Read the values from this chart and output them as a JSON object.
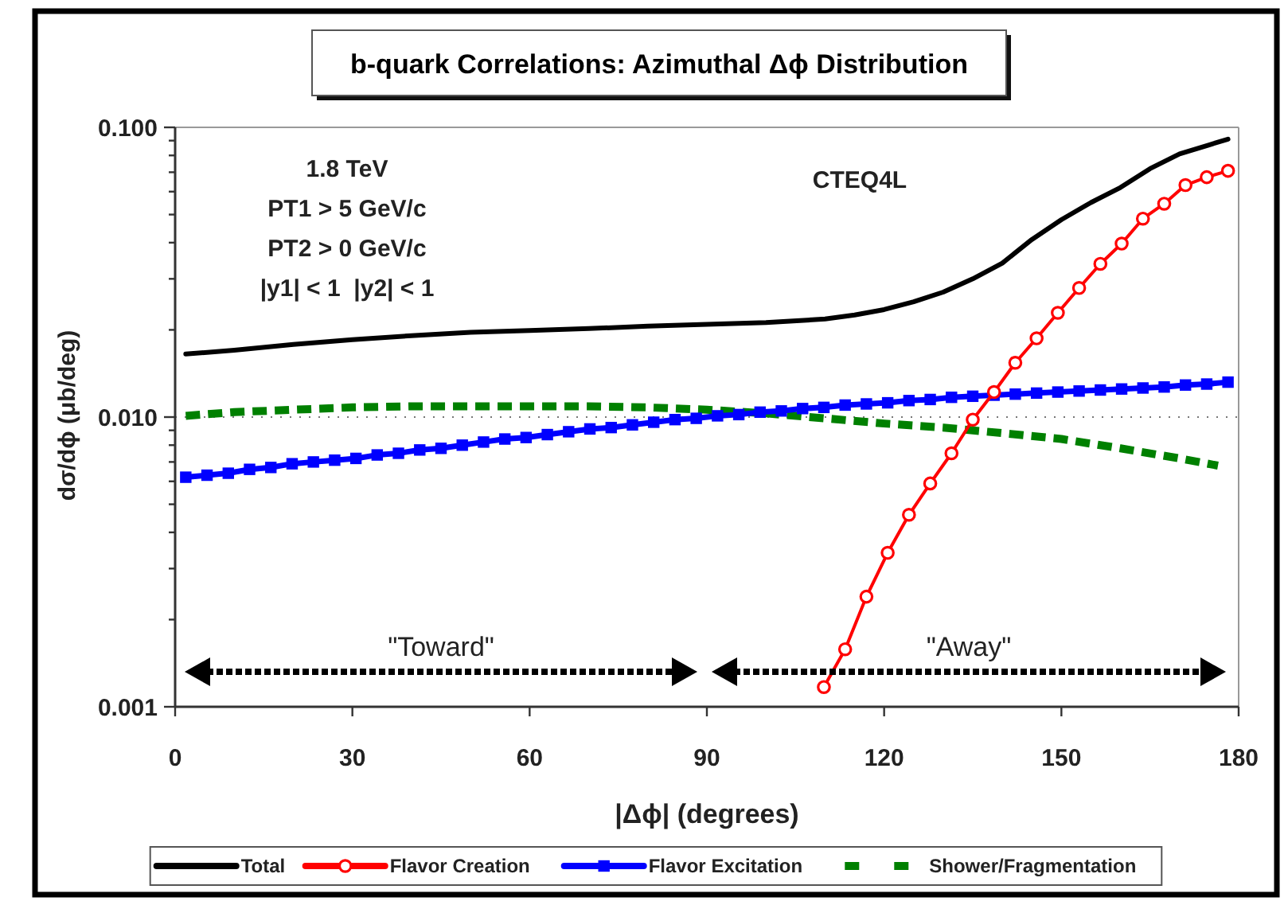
{
  "chart_data": {
    "type": "line",
    "title": "b-quark Correlations: Azimuthal Δϕ Distribution",
    "xlabel": "|Δϕ| (degrees)",
    "ylabel": "dσ/dϕ (μb/deg)",
    "xlim": [
      0,
      180
    ],
    "xticks": [
      0,
      30,
      60,
      90,
      120,
      150,
      180
    ],
    "ylim": [
      0.001,
      0.1
    ],
    "log": "y",
    "yticks": [
      {
        "value": 0.001,
        "label": "0.001"
      },
      {
        "value": 0.002,
        "label": null
      },
      {
        "value": 0.003,
        "label": null
      },
      {
        "value": 0.004,
        "label": null
      },
      {
        "value": 0.005,
        "label": null
      },
      {
        "value": 0.006,
        "label": null
      },
      {
        "value": 0.007,
        "label": null
      },
      {
        "value": 0.008,
        "label": null
      },
      {
        "value": 0.009,
        "label": null
      },
      {
        "value": 0.01,
        "label": "0.010"
      },
      {
        "value": 0.02,
        "label": null
      },
      {
        "value": 0.03,
        "label": null
      },
      {
        "value": 0.04,
        "label": null
      },
      {
        "value": 0.05,
        "label": null
      },
      {
        "value": 0.06,
        "label": null
      },
      {
        "value": 0.07,
        "label": null
      },
      {
        "value": 0.08,
        "label": null
      },
      {
        "value": 0.09,
        "label": null
      },
      {
        "value": 0.1,
        "label": "0.100"
      }
    ],
    "grid": "y",
    "legend": "bottom",
    "series": [
      {
        "name": "Total",
        "color": "#000000",
        "x": [
          1.8,
          10,
          20,
          30,
          40,
          50,
          60,
          70,
          80,
          90,
          100,
          110,
          115,
          120,
          125,
          130,
          135,
          140,
          145,
          150,
          155,
          160,
          165,
          170,
          175,
          178.2
        ],
        "values": [
          0.0165,
          0.017,
          0.0178,
          0.0185,
          0.0191,
          0.0196,
          0.0199,
          0.0202,
          0.0206,
          0.0209,
          0.0212,
          0.0218,
          0.0225,
          0.0235,
          0.025,
          0.027,
          0.03,
          0.034,
          0.041,
          0.048,
          0.055,
          0.062,
          0.072,
          0.081,
          0.087,
          0.091
        ]
      },
      {
        "name": "Flavor Creation",
        "color": "#ff0000",
        "marker": "circle",
        "x": [
          109.8,
          113.4,
          117.0,
          120.6,
          124.2,
          127.8,
          131.4,
          135.0,
          138.6,
          142.2,
          145.8,
          149.4,
          153.0,
          156.6,
          160.2,
          163.8,
          167.4,
          171.0,
          174.6,
          178.2
        ],
        "values": [
          0.00117,
          0.00158,
          0.0024,
          0.0034,
          0.0046,
          0.0059,
          0.0075,
          0.0098,
          0.0122,
          0.0154,
          0.0187,
          0.0229,
          0.0279,
          0.0338,
          0.0397,
          0.0484,
          0.0545,
          0.0632,
          0.0673,
          0.0708
        ]
      },
      {
        "name": "Flavor Excitation",
        "color": "#0000ff",
        "marker": "square",
        "x": [
          1.8,
          5.4,
          9.0,
          12.6,
          16.2,
          19.8,
          23.4,
          27.0,
          30.6,
          34.2,
          37.8,
          41.4,
          45.0,
          48.6,
          52.2,
          55.8,
          59.4,
          63.0,
          66.6,
          70.2,
          73.8,
          77.4,
          81.0,
          84.6,
          88.2,
          91.8,
          95.4,
          99.0,
          102.6,
          106.2,
          109.8,
          113.4,
          117.0,
          120.6,
          124.2,
          127.8,
          131.4,
          135.0,
          138.6,
          142.2,
          145.8,
          149.4,
          153.0,
          156.6,
          160.2,
          163.8,
          167.4,
          171.0,
          174.6,
          178.2
        ],
        "values": [
          0.0062,
          0.0063,
          0.0064,
          0.0066,
          0.0067,
          0.0069,
          0.007,
          0.0071,
          0.0072,
          0.0074,
          0.0075,
          0.0077,
          0.0078,
          0.008,
          0.0082,
          0.0084,
          0.0085,
          0.0087,
          0.0089,
          0.0091,
          0.0092,
          0.0094,
          0.0096,
          0.0098,
          0.0099,
          0.0101,
          0.0102,
          0.0104,
          0.0105,
          0.0107,
          0.0108,
          0.011,
          0.0111,
          0.0112,
          0.0114,
          0.0115,
          0.0117,
          0.0118,
          0.0119,
          0.012,
          0.0121,
          0.0122,
          0.0123,
          0.0124,
          0.0125,
          0.0126,
          0.0127,
          0.0129,
          0.013,
          0.0132
        ]
      },
      {
        "name": "Shower/Fragmentation",
        "color": "#008000",
        "line_style": "dashed",
        "x": [
          1.8,
          10,
          20,
          30,
          40,
          50,
          60,
          70,
          80,
          90,
          100,
          110,
          120,
          130,
          140,
          150,
          160,
          170,
          176.5
        ],
        "values": [
          0.0101,
          0.0104,
          0.0106,
          0.0108,
          0.0109,
          0.0109,
          0.0109,
          0.0109,
          0.0108,
          0.0106,
          0.0103,
          0.0099,
          0.0095,
          0.0092,
          0.0088,
          0.0084,
          0.0078,
          0.0072,
          0.0068
        ]
      }
    ],
    "annotations": [
      "1.8 TeV",
      "PT1 > 5 GeV/c",
      "PT2 > 0 GeV/c",
      "|y1| < 1  |y2| < 1",
      "CTEQ4L",
      "\"Toward\"",
      "\"Away\""
    ]
  }
}
